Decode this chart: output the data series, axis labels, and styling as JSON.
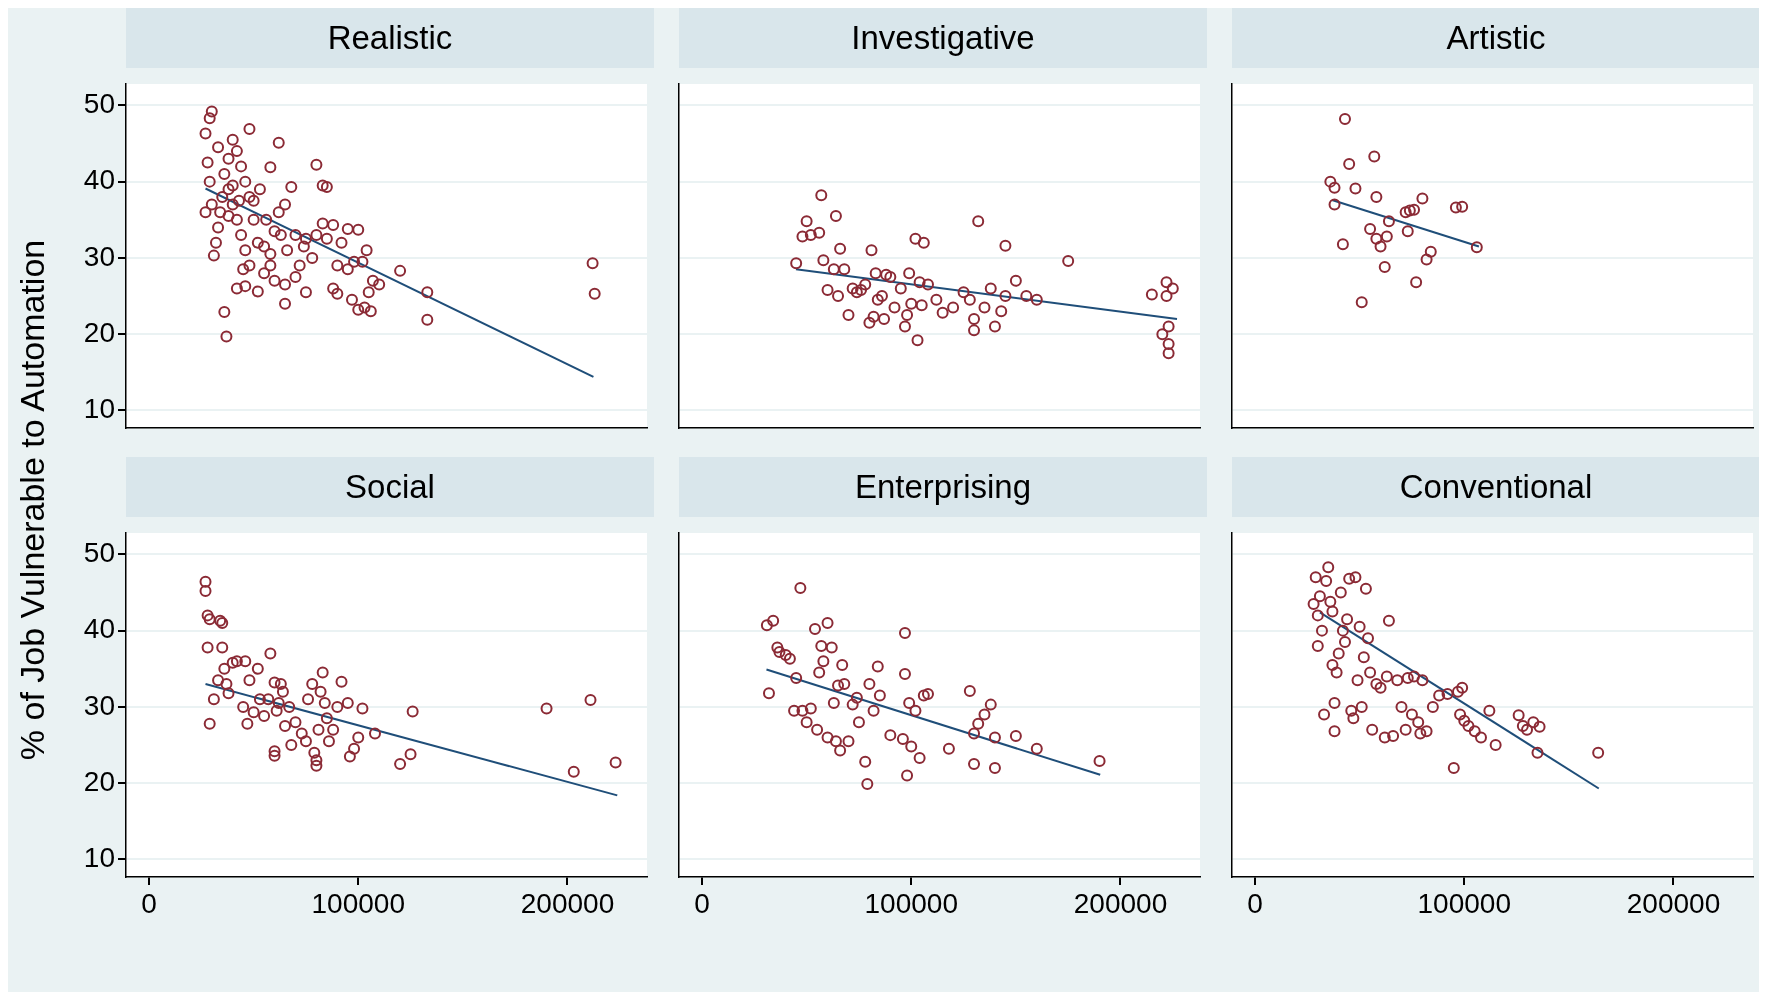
{
  "chart_data": [
    {
      "type": "scatter",
      "title": "Realistic",
      "ylabel": "% of Job Vulnerable to Automation",
      "xlim": [
        -11000,
        238000
      ],
      "ylim": [
        7.7,
        52.8
      ],
      "xticks": [
        0,
        100000,
        200000
      ],
      "yticks": [
        10,
        20,
        30,
        40,
        50
      ],
      "tick_labels": "y",
      "grid": "y",
      "series": [
        {
          "marker": "circle",
          "color": "#8b2a35",
          "x": [
            212000,
            213000,
            133000,
            133000,
            120000,
            80000,
            83000,
            85000,
            62000,
            30000,
            29000,
            27000,
            48000,
            36000,
            37000,
            42000,
            46000,
            52000,
            65000,
            75000,
            70000,
            88000,
            90000,
            95000,
            97000,
            100000,
            103000,
            106000,
            105000,
            107000,
            104000,
            100000,
            95000,
            92000,
            88000,
            83000,
            80000,
            78000,
            75000,
            72000,
            68000,
            65000,
            62000,
            60000,
            58000,
            55000,
            52000,
            50000,
            48000,
            46000,
            44000,
            42000,
            40000,
            38000,
            36000,
            35000,
            34000,
            33000,
            32000,
            31000,
            30000,
            29000,
            28000,
            27000,
            33000,
            38000,
            40000,
            42000,
            44000,
            46000,
            48000,
            50000,
            53000,
            56000,
            58000,
            63000,
            66000,
            70000,
            74000,
            85000,
            90000,
            98000,
            102000,
            110000,
            65000,
            60000,
            58000,
            45000,
            55000,
            38000,
            40000,
            43000
          ],
          "values": [
            29.3,
            25.3,
            21.9,
            25.5,
            28.3,
            42.2,
            39.5,
            39.3,
            45.1,
            49.2,
            48.3,
            46.3,
            46.9,
            22.9,
            19.7,
            26.0,
            26.3,
            25.6,
            24.0,
            25.5,
            27.5,
            26.0,
            25.3,
            28.5,
            24.5,
            23.2,
            23.5,
            23.0,
            25.5,
            27.0,
            31.0,
            33.7,
            33.8,
            32.0,
            34.3,
            34.5,
            33.0,
            30.0,
            32.5,
            29.0,
            39.3,
            37.0,
            36.0,
            33.5,
            30.5,
            28.0,
            32.0,
            35.0,
            38.0,
            40.0,
            42.0,
            44.0,
            45.5,
            43.0,
            41.0,
            38.0,
            36.0,
            34.0,
            32.0,
            30.3,
            37.0,
            40.0,
            42.5,
            36.0,
            44.5,
            39.0,
            37.0,
            35.0,
            33.0,
            31.0,
            29.0,
            37.5,
            39.0,
            35.0,
            41.9,
            33.0,
            31.0,
            33.0,
            31.5,
            32.5,
            29.0,
            29.5,
            29.5,
            26.5,
            26.5,
            27.0,
            29.0,
            28.5,
            31.5,
            35.5,
            39.5,
            37.5
          ]
        },
        {
          "type": "line",
          "color": "#1f4e79",
          "x": [
            27000,
            212400
          ],
          "values": [
            39.1,
            14.4
          ]
        }
      ]
    },
    {
      "type": "scatter",
      "title": "Investigative",
      "xlim": [
        -11000,
        238000
      ],
      "ylim": [
        7.7,
        52.8
      ],
      "xticks": [
        0,
        100000,
        200000
      ],
      "yticks": [
        10,
        20,
        30,
        40,
        50
      ],
      "tick_labels": false,
      "grid": "y",
      "series": [
        {
          "marker": "circle",
          "color": "#8b2a35",
          "x": [
            45000,
            48000,
            50000,
            52000,
            56000,
            57000,
            58000,
            60000,
            63000,
            64000,
            65000,
            66000,
            68000,
            70000,
            72000,
            74000,
            76000,
            78000,
            80000,
            81000,
            82000,
            83000,
            84000,
            86000,
            87000,
            88000,
            90000,
            92000,
            95000,
            97000,
            98000,
            99000,
            100000,
            102000,
            103000,
            104000,
            105000,
            106000,
            108000,
            112000,
            115000,
            120000,
            125000,
            128000,
            130000,
            130000,
            132000,
            135000,
            138000,
            140000,
            143000,
            145000,
            145000,
            150000,
            155000,
            160000,
            175000,
            215000,
            220000,
            222000,
            222000,
            223000,
            223000,
            223000,
            225000
          ],
          "values": [
            29.3,
            32.8,
            34.8,
            33.0,
            33.3,
            38.2,
            29.7,
            25.8,
            28.5,
            35.5,
            25.0,
            31.2,
            28.5,
            22.5,
            26.0,
            25.5,
            25.8,
            26.5,
            21.5,
            31.0,
            22.3,
            28.0,
            24.5,
            25.0,
            22.0,
            27.8,
            27.5,
            23.5,
            26.0,
            21.0,
            22.5,
            28.0,
            24.0,
            32.5,
            19.2,
            26.8,
            23.8,
            32.0,
            26.5,
            24.5,
            22.8,
            23.5,
            25.5,
            24.5,
            20.5,
            22.0,
            34.8,
            23.5,
            26.0,
            21.0,
            23.0,
            31.6,
            25.0,
            27.0,
            25.0,
            24.5,
            29.6,
            25.2,
            20.0,
            26.8,
            25.0,
            21.0,
            18.7,
            17.5,
            26.0
          ]
        },
        {
          "type": "line",
          "color": "#1f4e79",
          "x": [
            44900,
            227000
          ],
          "values": [
            28.5,
            22.0
          ]
        }
      ]
    },
    {
      "type": "scatter",
      "title": "Artistic",
      "xlim": [
        -11000,
        238000
      ],
      "ylim": [
        7.7,
        52.8
      ],
      "xticks": [
        0,
        100000,
        200000
      ],
      "yticks": [
        10,
        20,
        30,
        40,
        50
      ],
      "tick_labels": false,
      "grid": "y",
      "series": [
        {
          "marker": "circle",
          "color": "#8b2a35",
          "x": [
            36000,
            38000,
            38000,
            42000,
            43000,
            45000,
            48000,
            51000,
            55000,
            57000,
            58000,
            58000,
            60000,
            62000,
            63000,
            64000,
            72000,
            73000,
            74000,
            76000,
            77000,
            80000,
            82000,
            84000,
            96000,
            99000,
            106000
          ],
          "values": [
            40.0,
            39.2,
            37.0,
            31.8,
            48.2,
            42.3,
            39.1,
            24.2,
            33.8,
            43.3,
            38.0,
            32.5,
            31.5,
            28.8,
            32.8,
            34.8,
            36.0,
            33.5,
            36.2,
            36.3,
            26.8,
            37.8,
            29.8,
            30.8,
            36.6,
            36.7,
            31.4
          ]
        },
        {
          "type": "line",
          "color": "#1f4e79",
          "x": [
            36800,
            107000
          ],
          "values": [
            37.6,
            31.5
          ]
        }
      ]
    },
    {
      "type": "scatter",
      "title": "Social",
      "xlim": [
        -11000,
        238000
      ],
      "ylim": [
        7.7,
        52.8
      ],
      "xticks": [
        0,
        100000,
        200000
      ],
      "yticks": [
        10,
        20,
        30,
        40,
        50
      ],
      "grid": "y",
      "series": [
        {
          "marker": "circle",
          "color": "#8b2a35",
          "x": [
            27000,
            27000,
            28000,
            29000,
            28000,
            29000,
            31000,
            33000,
            34000,
            35000,
            35000,
            36000,
            37000,
            38000,
            40000,
            42000,
            45000,
            46000,
            47000,
            48000,
            50000,
            52000,
            53000,
            55000,
            57000,
            58000,
            60000,
            60000,
            60000,
            61000,
            62000,
            63000,
            64000,
            65000,
            67000,
            68000,
            70000,
            73000,
            75000,
            76000,
            78000,
            79000,
            80000,
            80000,
            81000,
            82000,
            83000,
            84000,
            85000,
            86000,
            88000,
            90000,
            92000,
            95000,
            96000,
            98000,
            100000,
            102000,
            108000,
            120000,
            125000,
            126000,
            190000,
            203000,
            211000,
            223000
          ],
          "values": [
            46.4,
            45.2,
            42.0,
            41.5,
            37.8,
            27.8,
            31.0,
            33.5,
            41.3,
            41.0,
            37.8,
            35.0,
            33.0,
            31.8,
            35.8,
            36.0,
            30.0,
            36.0,
            27.8,
            33.5,
            29.3,
            35.0,
            31.0,
            28.8,
            31.0,
            37.0,
            33.2,
            24.2,
            23.6,
            29.5,
            30.5,
            33.0,
            32.0,
            27.5,
            30.0,
            25.0,
            28.0,
            26.5,
            25.5,
            31.0,
            33.0,
            24.0,
            23.0,
            22.3,
            27.0,
            32.0,
            34.5,
            30.5,
            28.5,
            25.5,
            27.0,
            30.0,
            33.3,
            30.5,
            23.5,
            24.5,
            26.0,
            29.8,
            26.5,
            22.5,
            23.8,
            29.4,
            29.8,
            21.5,
            30.9,
            22.7
          ]
        },
        {
          "type": "line",
          "color": "#1f4e79",
          "x": [
            27000,
            223800
          ],
          "values": [
            33.0,
            18.4
          ]
        }
      ]
    },
    {
      "type": "scatter",
      "title": "Enterprising",
      "xlim": [
        -11000,
        238000
      ],
      "ylim": [
        7.7,
        52.8
      ],
      "xticks": [
        0,
        100000,
        200000
      ],
      "yticks": [
        10,
        20,
        30,
        40,
        50
      ],
      "tick_labels": "x",
      "grid": "y",
      "series": [
        {
          "marker": "circle",
          "color": "#8b2a35",
          "x": [
            31000,
            32000,
            34000,
            36000,
            37000,
            40000,
            42000,
            44000,
            45000,
            47000,
            48000,
            50000,
            52000,
            54000,
            55000,
            56000,
            57000,
            58000,
            60000,
            60000,
            62000,
            63000,
            64000,
            65000,
            66000,
            67000,
            68000,
            70000,
            72000,
            74000,
            75000,
            78000,
            79000,
            80000,
            82000,
            84000,
            85000,
            90000,
            96000,
            97000,
            97000,
            98000,
            99000,
            100000,
            102000,
            104000,
            106000,
            108000,
            118000,
            128000,
            130000,
            130000,
            132000,
            135000,
            138000,
            140000,
            140000,
            150000,
            160000,
            190000
          ],
          "values": [
            40.7,
            31.8,
            41.3,
            37.8,
            37.2,
            36.8,
            36.3,
            29.5,
            33.8,
            45.6,
            29.5,
            28.0,
            29.8,
            40.2,
            27.0,
            34.5,
            38.0,
            36.0,
            41.0,
            26.0,
            37.8,
            30.5,
            25.5,
            32.8,
            24.3,
            35.5,
            33.0,
            25.5,
            30.3,
            31.2,
            28.0,
            22.8,
            19.9,
            33.0,
            29.5,
            35.3,
            31.5,
            26.3,
            25.8,
            39.7,
            34.3,
            21.0,
            30.5,
            24.8,
            29.5,
            23.3,
            31.5,
            31.7,
            24.5,
            32.1,
            26.5,
            22.5,
            27.8,
            29.0,
            30.3,
            26.0,
            22.0,
            26.2,
            24.5,
            22.9
          ]
        },
        {
          "type": "line",
          "color": "#1f4e79",
          "x": [
            30800,
            190300
          ],
          "values": [
            34.9,
            21.1
          ]
        }
      ]
    },
    {
      "type": "scatter",
      "title": "Conventional",
      "xlim": [
        -11000,
        238000
      ],
      "ylim": [
        7.7,
        52.8
      ],
      "xticks": [
        0,
        100000,
        200000
      ],
      "yticks": [
        10,
        20,
        30,
        40,
        50
      ],
      "tick_labels": "x",
      "grid": "y",
      "series": [
        {
          "marker": "circle",
          "color": "#8b2a35",
          "x": [
            28000,
            29000,
            30000,
            30000,
            31000,
            32000,
            33000,
            34000,
            35000,
            36000,
            37000,
            37000,
            38000,
            38000,
            39000,
            40000,
            41000,
            42000,
            43000,
            44000,
            45000,
            46000,
            47000,
            48000,
            49000,
            50000,
            51000,
            52000,
            53000,
            54000,
            55000,
            56000,
            58000,
            60000,
            62000,
            63000,
            64000,
            66000,
            68000,
            70000,
            72000,
            73000,
            75000,
            76000,
            78000,
            79000,
            80000,
            82000,
            85000,
            88000,
            92000,
            95000,
            97000,
            98000,
            99000,
            100000,
            102000,
            105000,
            108000,
            112000,
            115000,
            126000,
            128000,
            130000,
            133000,
            135000,
            136000,
            164000
          ],
          "values": [
            43.5,
            47.0,
            42.0,
            38.0,
            44.5,
            40.0,
            29.0,
            46.5,
            48.3,
            43.8,
            42.5,
            35.5,
            30.5,
            26.8,
            34.5,
            37.0,
            45.0,
            40.0,
            38.5,
            41.5,
            46.8,
            29.5,
            28.5,
            47.0,
            33.5,
            40.5,
            30.0,
            36.5,
            45.5,
            39.0,
            34.5,
            27.0,
            33.0,
            32.5,
            26.0,
            34.0,
            41.3,
            26.2,
            33.5,
            30.0,
            27.0,
            33.8,
            29.0,
            34.0,
            28.0,
            26.5,
            33.5,
            26.8,
            30.0,
            31.5,
            31.7,
            22.0,
            32.0,
            29.0,
            32.5,
            28.2,
            27.5,
            26.8,
            26.0,
            29.5,
            25.0,
            28.9,
            27.5,
            27.0,
            28.0,
            24.0,
            27.4,
            24.0
          ]
        },
        {
          "type": "line",
          "color": "#1f4e79",
          "x": [
            31000,
            164300
          ],
          "values": [
            42.4,
            19.3
          ]
        }
      ]
    }
  ]
}
